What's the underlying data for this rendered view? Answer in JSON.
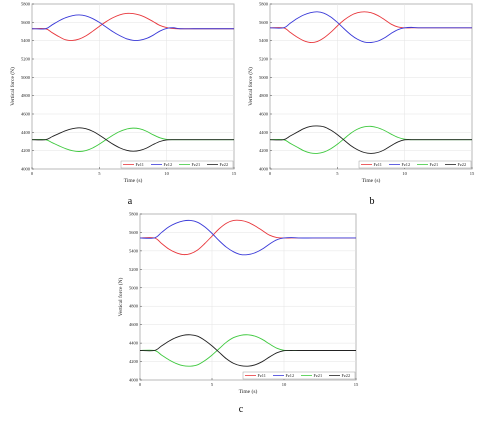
{
  "chart_data": [
    {
      "type": "line",
      "panel_label": "a",
      "xlabel": "Time (s)",
      "ylabel": "Vertical force (N)",
      "xlim": [
        0,
        15
      ],
      "ylim": [
        4000,
        5800
      ],
      "xticks": [
        0,
        5,
        10,
        15
      ],
      "yticks": [
        4000,
        4200,
        4400,
        4600,
        4800,
        5000,
        5200,
        5400,
        5600,
        5800
      ],
      "grid": true,
      "legend_position": "bottom-right",
      "series": [
        {
          "name": "Fz11",
          "color": "#e8383d",
          "x": [
            0,
            1,
            1.5,
            2,
            2.5,
            3,
            3.5,
            4,
            4.5,
            5,
            5.5,
            6,
            6.5,
            7,
            7.5,
            8,
            8.5,
            9,
            9.5,
            10,
            10.5,
            11,
            12,
            13,
            14,
            15
          ],
          "values": [
            5530,
            5530,
            5487,
            5444,
            5409,
            5402,
            5417,
            5452,
            5502,
            5556,
            5607,
            5650,
            5681,
            5697,
            5696,
            5679,
            5648,
            5608,
            5566,
            5543,
            5532,
            5530,
            5530,
            5530,
            5530,
            5530
          ]
        },
        {
          "name": "Fz12",
          "color": "#3a3ad8",
          "x": [
            0,
            1,
            1.5,
            2,
            2.5,
            3,
            3.5,
            4,
            4.5,
            5,
            5.5,
            6,
            6.5,
            7,
            7.5,
            8,
            8.5,
            9,
            9.5,
            10,
            10.5,
            11,
            12,
            13,
            14,
            15
          ],
          "values": [
            5530,
            5530,
            5573,
            5616,
            5651,
            5673,
            5681,
            5670,
            5641,
            5599,
            5549,
            5499,
            5456,
            5422,
            5404,
            5405,
            5424,
            5460,
            5505,
            5533,
            5541,
            5530,
            5530,
            5530,
            5530,
            5530
          ]
        },
        {
          "name": "Fz21",
          "color": "#3fc93f",
          "x": [
            0,
            1,
            1.5,
            2,
            2.5,
            3,
            3.5,
            4,
            4.5,
            5,
            5.5,
            6,
            6.5,
            7,
            7.5,
            8,
            8.5,
            9,
            9.5,
            10,
            10.5,
            11,
            12,
            13,
            14,
            15
          ],
          "values": [
            4320,
            4320,
            4287,
            4253,
            4222,
            4200,
            4191,
            4201,
            4229,
            4271,
            4320,
            4368,
            4408,
            4435,
            4446,
            4438,
            4412,
            4373,
            4340,
            4323,
            4320,
            4320,
            4320,
            4320,
            4320,
            4320
          ]
        },
        {
          "name": "Fz22",
          "color": "#222222",
          "x": [
            0,
            1,
            1.5,
            2,
            2.5,
            3,
            3.5,
            4,
            4.5,
            5,
            5.5,
            6,
            6.5,
            7,
            7.5,
            8,
            8.5,
            9,
            9.5,
            10,
            10.5,
            11,
            12,
            13,
            14,
            15
          ],
          "values": [
            4320,
            4320,
            4353,
            4387,
            4418,
            4440,
            4449,
            4440,
            4412,
            4370,
            4320,
            4272,
            4232,
            4205,
            4194,
            4202,
            4228,
            4267,
            4300,
            4317,
            4320,
            4320,
            4320,
            4320,
            4320,
            4320
          ]
        }
      ]
    },
    {
      "type": "line",
      "panel_label": "b",
      "xlabel": "Time (s)",
      "ylabel": "Vertical force (N)",
      "xlim": [
        0,
        15
      ],
      "ylim": [
        4000,
        5800
      ],
      "xticks": [
        0,
        5,
        10,
        15
      ],
      "yticks": [
        4000,
        4200,
        4400,
        4600,
        4800,
        5000,
        5200,
        5400,
        5600,
        5800
      ],
      "grid": true,
      "legend_position": "bottom-right",
      "series": [
        {
          "name": "Fz11",
          "color": "#e8383d",
          "x": [
            0,
            1,
            1.5,
            2,
            2.5,
            3,
            3.5,
            4,
            4.5,
            5,
            5.5,
            6,
            6.5,
            7,
            7.5,
            8,
            8.5,
            9,
            9.5,
            10,
            10.5,
            11,
            12,
            13,
            14,
            15
          ],
          "values": [
            5540,
            5540,
            5490,
            5440,
            5400,
            5380,
            5390,
            5430,
            5490,
            5560,
            5625,
            5675,
            5705,
            5715,
            5705,
            5675,
            5630,
            5580,
            5550,
            5540,
            5540,
            5540,
            5540,
            5540,
            5540,
            5540
          ]
        },
        {
          "name": "Fz12",
          "color": "#3a3ad8",
          "x": [
            0,
            1,
            1.5,
            2,
            2.5,
            3,
            3.5,
            4,
            4.5,
            5,
            5.5,
            6,
            6.5,
            7,
            7.5,
            8,
            8.5,
            9,
            9.5,
            10,
            10.5,
            11,
            12,
            13,
            14,
            15
          ],
          "values": [
            5540,
            5540,
            5590,
            5640,
            5680,
            5705,
            5715,
            5700,
            5660,
            5600,
            5530,
            5465,
            5415,
            5385,
            5380,
            5395,
            5430,
            5480,
            5520,
            5540,
            5545,
            5540,
            5540,
            5540,
            5540,
            5540
          ]
        },
        {
          "name": "Fz21",
          "color": "#3fc93f",
          "x": [
            0,
            1,
            1.5,
            2,
            2.5,
            3,
            3.5,
            4,
            4.5,
            5,
            5.5,
            6,
            6.5,
            7,
            7.5,
            8,
            8.5,
            9,
            9.5,
            10,
            10.5,
            11,
            12,
            13,
            14,
            15
          ],
          "values": [
            4320,
            4320,
            4280,
            4240,
            4200,
            4175,
            4170,
            4185,
            4220,
            4270,
            4330,
            4390,
            4435,
            4460,
            4465,
            4450,
            4420,
            4380,
            4345,
            4325,
            4320,
            4320,
            4320,
            4320,
            4320,
            4320
          ]
        },
        {
          "name": "Fz22",
          "color": "#222222",
          "x": [
            0,
            1,
            1.5,
            2,
            2.5,
            3,
            3.5,
            4,
            4.5,
            5,
            5.5,
            6,
            6.5,
            7,
            7.5,
            8,
            8.5,
            9,
            9.5,
            10,
            10.5,
            11,
            12,
            13,
            14,
            15
          ],
          "values": [
            4320,
            4320,
            4360,
            4400,
            4440,
            4465,
            4470,
            4460,
            4425,
            4375,
            4315,
            4255,
            4210,
            4180,
            4170,
            4180,
            4210,
            4255,
            4295,
            4318,
            4320,
            4320,
            4320,
            4320,
            4320,
            4320
          ]
        }
      ]
    },
    {
      "type": "line",
      "panel_label": "c",
      "xlabel": "Time (s)",
      "ylabel": "Vertical force (N)",
      "xlim": [
        0,
        15
      ],
      "ylim": [
        4000,
        5800
      ],
      "xticks": [
        0,
        5,
        10,
        15
      ],
      "yticks": [
        4000,
        4200,
        4400,
        4600,
        4800,
        5000,
        5200,
        5400,
        5600,
        5800
      ],
      "grid": true,
      "legend_position": "bottom-right",
      "series": [
        {
          "name": "Fz11",
          "color": "#e8383d",
          "x": [
            0,
            1,
            1.5,
            2,
            2.5,
            3,
            3.5,
            4,
            4.5,
            5,
            5.5,
            6,
            6.5,
            7,
            7.5,
            8,
            8.5,
            9,
            9.5,
            10,
            10.5,
            11,
            12,
            13,
            14,
            15
          ],
          "values": [
            5540,
            5540,
            5480,
            5420,
            5380,
            5360,
            5370,
            5410,
            5480,
            5560,
            5640,
            5700,
            5730,
            5730,
            5710,
            5670,
            5620,
            5570,
            5545,
            5540,
            5540,
            5540,
            5540,
            5540,
            5540,
            5540
          ]
        },
        {
          "name": "Fz12",
          "color": "#3a3ad8",
          "x": [
            0,
            1,
            1.5,
            2,
            2.5,
            3,
            3.5,
            4,
            4.5,
            5,
            5.5,
            6,
            6.5,
            7,
            7.5,
            8,
            8.5,
            9,
            9.5,
            10,
            10.5,
            11,
            12,
            13,
            14,
            15
          ],
          "values": [
            5540,
            5540,
            5600,
            5660,
            5700,
            5725,
            5730,
            5710,
            5660,
            5590,
            5510,
            5440,
            5390,
            5360,
            5360,
            5380,
            5420,
            5475,
            5520,
            5540,
            5545,
            5540,
            5540,
            5540,
            5540,
            5540
          ]
        },
        {
          "name": "Fz21",
          "color": "#3fc93f",
          "x": [
            0,
            1,
            1.5,
            2,
            2.5,
            3,
            3.5,
            4,
            4.5,
            5,
            5.5,
            6,
            6.5,
            7,
            7.5,
            8,
            8.5,
            9,
            9.5,
            10,
            10.5,
            11,
            12,
            13,
            14,
            15
          ],
          "values": [
            4320,
            4320,
            4270,
            4220,
            4180,
            4155,
            4150,
            4165,
            4210,
            4270,
            4340,
            4410,
            4460,
            4485,
            4490,
            4475,
            4440,
            4390,
            4345,
            4322,
            4320,
            4320,
            4320,
            4320,
            4320,
            4320
          ]
        },
        {
          "name": "Fz22",
          "color": "#222222",
          "x": [
            0,
            1,
            1.5,
            2,
            2.5,
            3,
            3.5,
            4,
            4.5,
            5,
            5.5,
            6,
            6.5,
            7,
            7.5,
            8,
            8.5,
            9,
            9.5,
            10,
            10.5,
            11,
            12,
            13,
            14,
            15
          ],
          "values": [
            4320,
            4320,
            4370,
            4420,
            4460,
            4485,
            4490,
            4475,
            4430,
            4370,
            4300,
            4230,
            4180,
            4155,
            4150,
            4165,
            4200,
            4250,
            4295,
            4318,
            4320,
            4320,
            4320,
            4320,
            4320,
            4320
          ]
        }
      ]
    }
  ]
}
